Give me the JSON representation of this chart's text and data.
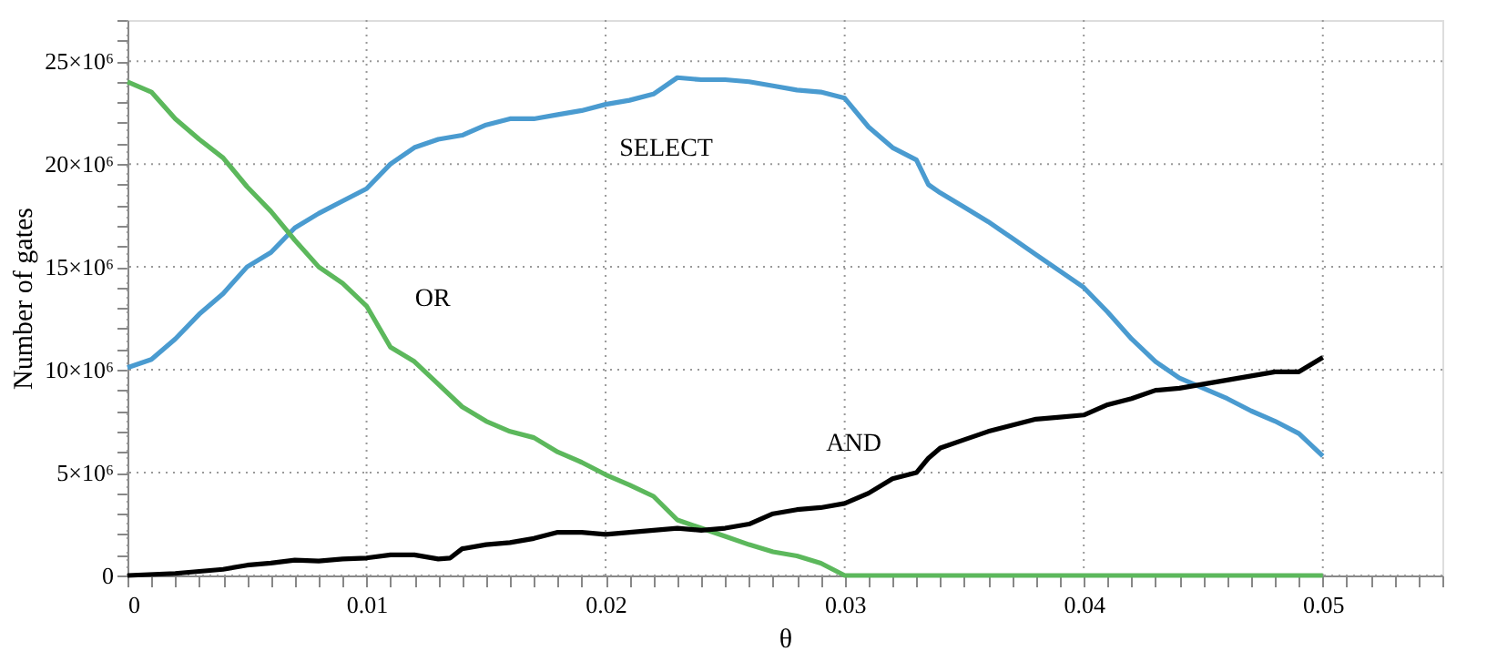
{
  "chart_data": {
    "type": "line",
    "xlabel": "θ",
    "ylabel": "Number of gates",
    "xlim": [
      0,
      0.055
    ],
    "ylim": [
      0,
      27000000
    ],
    "xticks": [
      0,
      {
        "value": 0.001,
        "label": null
      },
      {
        "value": 0.002,
        "label": null
      },
      {
        "value": 0.003,
        "label": null
      },
      {
        "value": 0.004,
        "label": null
      },
      {
        "value": 0.005,
        "label": null
      },
      {
        "value": 0.006,
        "label": null
      },
      {
        "value": 0.007,
        "label": null
      },
      {
        "value": 0.008,
        "label": null
      },
      {
        "value": 0.009,
        "label": null
      },
      0.01,
      {
        "value": 0.011,
        "label": null
      },
      {
        "value": 0.012,
        "label": null
      },
      {
        "value": 0.013,
        "label": null
      },
      {
        "value": 0.014,
        "label": null
      },
      {
        "value": 0.015,
        "label": null
      },
      {
        "value": 0.016,
        "label": null
      },
      {
        "value": 0.017,
        "label": null
      },
      {
        "value": 0.018,
        "label": null
      },
      {
        "value": 0.019,
        "label": null
      },
      0.02,
      {
        "value": 0.021,
        "label": null
      },
      {
        "value": 0.022,
        "label": null
      },
      {
        "value": 0.023,
        "label": null
      },
      {
        "value": 0.024,
        "label": null
      },
      {
        "value": 0.025,
        "label": null
      },
      {
        "value": 0.026,
        "label": null
      },
      {
        "value": 0.027,
        "label": null
      },
      {
        "value": 0.028,
        "label": null
      },
      {
        "value": 0.029,
        "label": null
      },
      0.03,
      {
        "value": 0.031,
        "label": null
      },
      {
        "value": 0.032,
        "label": null
      },
      {
        "value": 0.033,
        "label": null
      },
      {
        "value": 0.034,
        "label": null
      },
      {
        "value": 0.035,
        "label": null
      },
      {
        "value": 0.036,
        "label": null
      },
      {
        "value": 0.037,
        "label": null
      },
      {
        "value": 0.038,
        "label": null
      },
      {
        "value": 0.039,
        "label": null
      },
      0.04,
      {
        "value": 0.041,
        "label": null
      },
      {
        "value": 0.042,
        "label": null
      },
      {
        "value": 0.043,
        "label": null
      },
      {
        "value": 0.044,
        "label": null
      },
      {
        "value": 0.045,
        "label": null
      },
      {
        "value": 0.046,
        "label": null
      },
      {
        "value": 0.047,
        "label": null
      },
      {
        "value": 0.048,
        "label": null
      },
      {
        "value": 0.049,
        "label": null
      },
      0.05,
      {
        "value": 0.051,
        "label": null
      },
      {
        "value": 0.052,
        "label": null
      },
      {
        "value": 0.053,
        "label": null
      },
      {
        "value": 0.054,
        "label": null
      },
      {
        "value": 0.055,
        "label": null
      }
    ],
    "yticks": [
      0,
      {
        "value": 1000000,
        "label": null
      },
      {
        "value": 2000000,
        "label": null
      },
      {
        "value": 3000000,
        "label": null
      },
      {
        "value": 4000000,
        "label": null
      },
      {
        "value": 5000000,
        "label": "5×10⁶"
      },
      {
        "value": 6000000,
        "label": null
      },
      {
        "value": 7000000,
        "label": null
      },
      {
        "value": 8000000,
        "label": null
      },
      {
        "value": 9000000,
        "label": null
      },
      {
        "value": 10000000,
        "label": "10×10⁶"
      },
      {
        "value": 11000000,
        "label": null
      },
      {
        "value": 12000000,
        "label": null
      },
      {
        "value": 13000000,
        "label": null
      },
      {
        "value": 14000000,
        "label": null
      },
      {
        "value": 15000000,
        "label": "15×10⁶"
      },
      {
        "value": 16000000,
        "label": null
      },
      {
        "value": 17000000,
        "label": null
      },
      {
        "value": 18000000,
        "label": null
      },
      {
        "value": 19000000,
        "label": null
      },
      {
        "value": 20000000,
        "label": "20×10⁶"
      },
      {
        "value": 21000000,
        "label": null
      },
      {
        "value": 22000000,
        "label": null
      },
      {
        "value": 23000000,
        "label": null
      },
      {
        "value": 24000000,
        "label": null
      },
      {
        "value": 25000000,
        "label": "25×10⁶"
      },
      {
        "value": 26000000,
        "label": null
      },
      {
        "value": 27000000,
        "label": null
      }
    ],
    "grid": true,
    "legend": false,
    "marker": "none",
    "line_style": "solid",
    "series": [
      {
        "name": "SELECT",
        "color": "#4a9bd0",
        "x": [
          0,
          0.001,
          0.002,
          0.003,
          0.004,
          0.005,
          0.006,
          0.007,
          0.008,
          0.009,
          0.01,
          0.011,
          0.012,
          0.013,
          0.014,
          0.015,
          0.016,
          0.017,
          0.018,
          0.019,
          0.02,
          0.021,
          0.022,
          0.023,
          0.024,
          0.025,
          0.026,
          0.027,
          0.028,
          0.029,
          0.03,
          0.031,
          0.032,
          0.033,
          0.0335,
          0.034,
          0.035,
          0.036,
          0.037,
          0.038,
          0.039,
          0.04,
          0.041,
          0.042,
          0.043,
          0.044,
          0.045,
          0.046,
          0.047,
          0.048,
          0.049,
          0.05
        ],
        "values": [
          10100000,
          10500000,
          11500000,
          12700000,
          13700000,
          15000000,
          15700000,
          16900000,
          17600000,
          18200000,
          18800000,
          20000000,
          20800000,
          21200000,
          21400000,
          21900000,
          22200000,
          22200000,
          22400000,
          22600000,
          22900000,
          23100000,
          23400000,
          24200000,
          24100000,
          24100000,
          24000000,
          23800000,
          23600000,
          23500000,
          23200000,
          21800000,
          20800000,
          20200000,
          19000000,
          18600000,
          17900000,
          17200000,
          16400000,
          15600000,
          14800000,
          14000000,
          12800000,
          11500000,
          10400000,
          9600000,
          9100000,
          8600000,
          8000000,
          7500000,
          6900000,
          5800000
        ]
      },
      {
        "name": "OR",
        "color": "#5cb85c",
        "x": [
          0,
          0.001,
          0.002,
          0.003,
          0.004,
          0.005,
          0.006,
          0.007,
          0.008,
          0.009,
          0.01,
          0.011,
          0.012,
          0.013,
          0.014,
          0.015,
          0.016,
          0.017,
          0.018,
          0.019,
          0.02,
          0.021,
          0.022,
          0.023,
          0.024,
          0.025,
          0.026,
          0.027,
          0.028,
          0.029,
          0.03,
          0.04,
          0.05
        ],
        "values": [
          24000000,
          23500000,
          22200000,
          21200000,
          20300000,
          18900000,
          17700000,
          16300000,
          15000000,
          14200000,
          13100000,
          11100000,
          10400000,
          9300000,
          8200000,
          7500000,
          7000000,
          6700000,
          6000000,
          5500000,
          4900000,
          4400000,
          3850000,
          2700000,
          2300000,
          1900000,
          1500000,
          1150000,
          950000,
          600000,
          0,
          0,
          0
        ]
      },
      {
        "name": "AND",
        "color": "#000000",
        "x": [
          0,
          0.002,
          0.004,
          0.005,
          0.006,
          0.007,
          0.008,
          0.009,
          0.01,
          0.011,
          0.012,
          0.013,
          0.0135,
          0.014,
          0.015,
          0.016,
          0.017,
          0.018,
          0.019,
          0.02,
          0.021,
          0.022,
          0.023,
          0.024,
          0.025,
          0.026,
          0.027,
          0.028,
          0.029,
          0.03,
          0.031,
          0.032,
          0.033,
          0.0335,
          0.034,
          0.035,
          0.036,
          0.037,
          0.038,
          0.039,
          0.04,
          0.041,
          0.042,
          0.043,
          0.044,
          0.045,
          0.046,
          0.047,
          0.048,
          0.049,
          0.05
        ],
        "values": [
          0,
          100000,
          300000,
          500000,
          600000,
          750000,
          700000,
          800000,
          850000,
          1000000,
          1000000,
          800000,
          850000,
          1300000,
          1500000,
          1600000,
          1800000,
          2100000,
          2100000,
          2000000,
          2100000,
          2200000,
          2300000,
          2200000,
          2300000,
          2500000,
          3000000,
          3200000,
          3300000,
          3500000,
          4000000,
          4700000,
          5000000,
          5700000,
          6200000,
          6600000,
          7000000,
          7300000,
          7600000,
          7700000,
          7800000,
          8300000,
          8600000,
          9000000,
          9100000,
          9300000,
          9500000,
          9700000,
          9900000,
          9900000,
          10600000
        ]
      }
    ]
  }
}
